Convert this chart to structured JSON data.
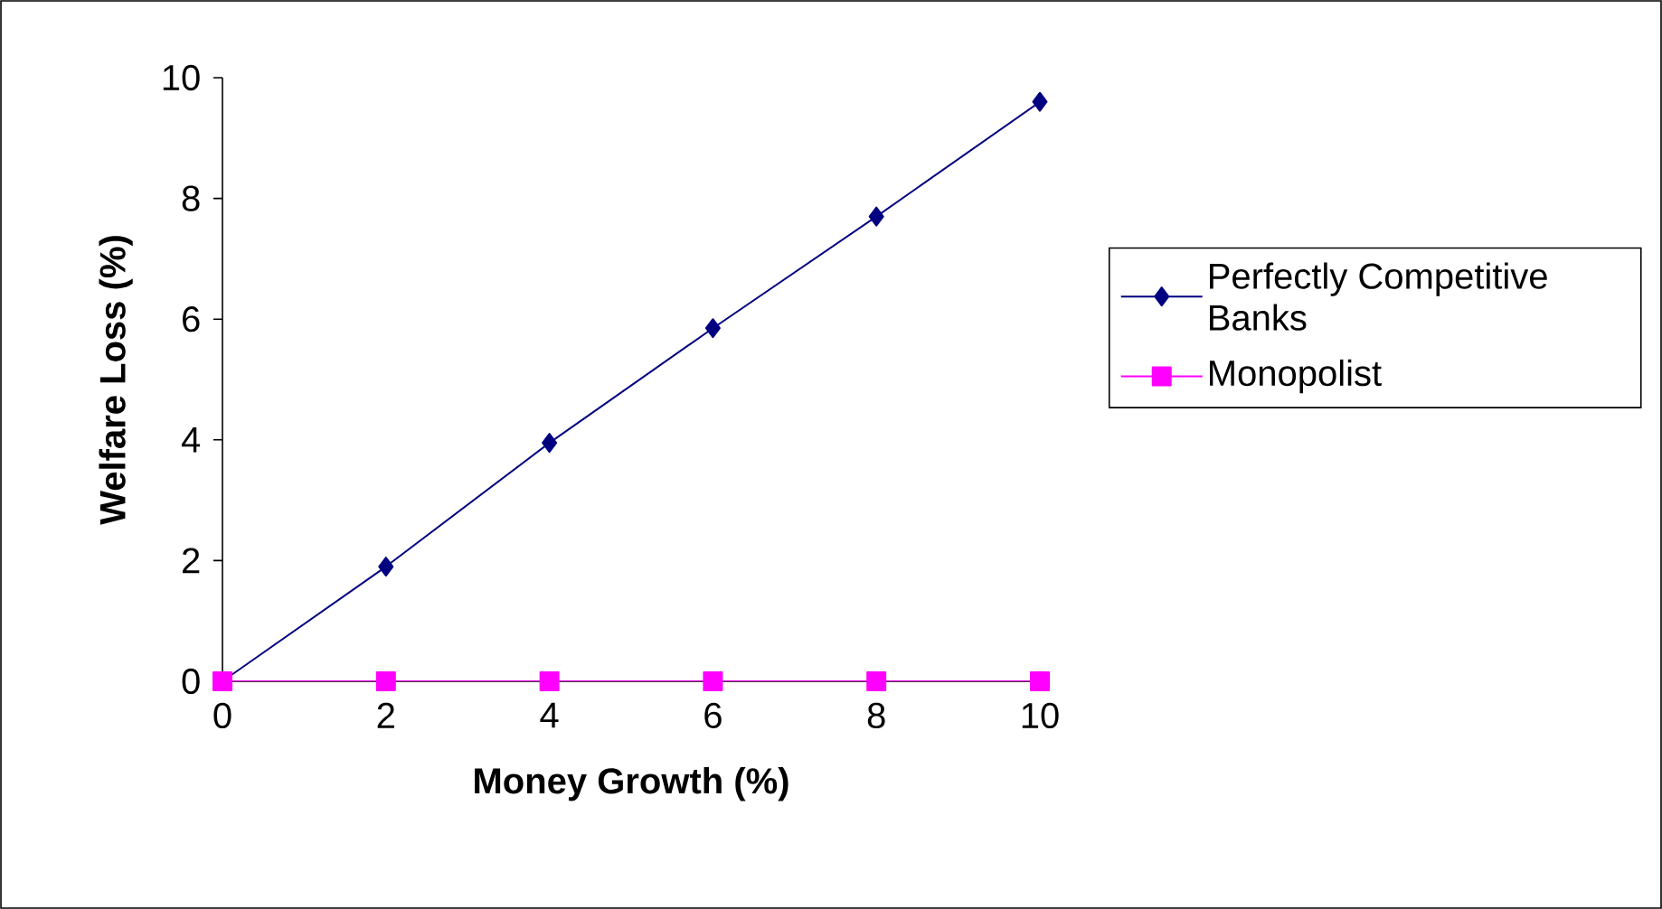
{
  "chart_data": {
    "type": "line",
    "xlabel": "Money Growth (%)",
    "ylabel": "Welfare Loss (%)",
    "x": [
      0,
      2,
      4,
      6,
      8,
      10
    ],
    "series": [
      {
        "name": "Perfectly Competitive Banks",
        "color": "#000080",
        "marker": "diamond",
        "values": [
          0,
          1.9,
          3.95,
          5.85,
          7.7,
          9.6
        ]
      },
      {
        "name": "Monopolist",
        "color": "#ff00ff",
        "marker": "square",
        "values": [
          0,
          0,
          0,
          0,
          0,
          0
        ]
      }
    ],
    "xlim": [
      0,
      10
    ],
    "ylim": [
      0,
      10
    ],
    "xticks": [
      0,
      2,
      4,
      6,
      8,
      10
    ],
    "yticks": [
      0,
      2,
      4,
      6,
      8,
      10
    ],
    "grid": false,
    "legend": "right",
    "line_style": "solid"
  }
}
